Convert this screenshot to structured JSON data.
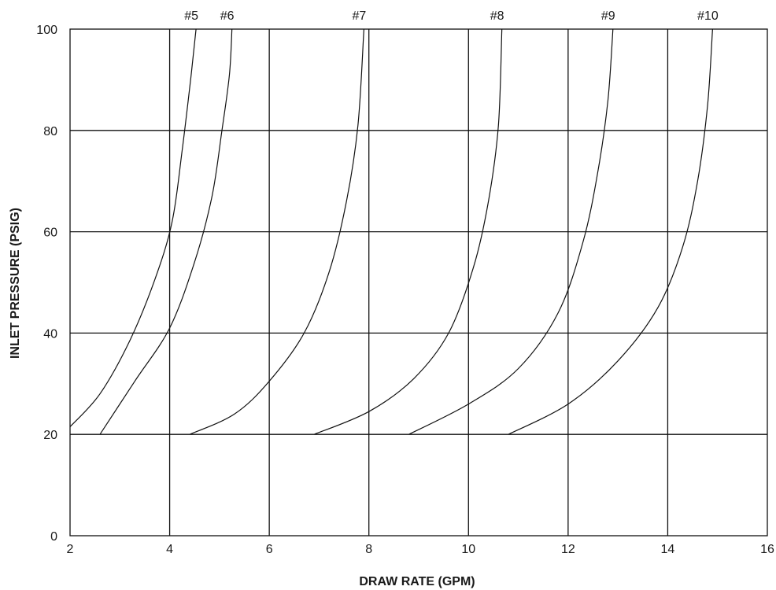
{
  "chart_data": {
    "type": "line",
    "title": "",
    "xlabel": "DRAW RATE (GPM)",
    "ylabel": "INLET PRESSURE (PSIG)",
    "xlim": [
      2,
      16
    ],
    "ylim": [
      0,
      100
    ],
    "xticks": [
      2,
      4,
      6,
      8,
      10,
      12,
      14,
      16
    ],
    "yticks": [
      0,
      20,
      40,
      60,
      80,
      100
    ],
    "grid": true,
    "series": [
      {
        "name": "#5",
        "points": [
          [
            2.0,
            21.5
          ],
          [
            2.6,
            28
          ],
          [
            3.2,
            38.5
          ],
          [
            3.7,
            50.5
          ],
          [
            4.05,
            62
          ],
          [
            4.25,
            76
          ],
          [
            4.42,
            90
          ],
          [
            4.53,
            100
          ]
        ]
      },
      {
        "name": "#6",
        "points": [
          [
            2.6,
            20
          ],
          [
            3.3,
            30.5
          ],
          [
            4.0,
            41
          ],
          [
            4.5,
            54
          ],
          [
            4.85,
            67
          ],
          [
            5.05,
            80
          ],
          [
            5.2,
            91
          ],
          [
            5.25,
            100
          ]
        ]
      },
      {
        "name": "#7",
        "points": [
          [
            4.4,
            20
          ],
          [
            5.3,
            24
          ],
          [
            6.0,
            30.5
          ],
          [
            6.7,
            40
          ],
          [
            7.2,
            52
          ],
          [
            7.55,
            66
          ],
          [
            7.78,
            81
          ],
          [
            7.9,
            100
          ]
        ]
      },
      {
        "name": "#8",
        "points": [
          [
            6.9,
            20
          ],
          [
            8.0,
            24.5
          ],
          [
            8.9,
            31
          ],
          [
            9.6,
            40
          ],
          [
            10.1,
            53
          ],
          [
            10.4,
            66
          ],
          [
            10.6,
            81
          ],
          [
            10.67,
            100
          ]
        ]
      },
      {
        "name": "#9",
        "points": [
          [
            8.8,
            20
          ],
          [
            10.0,
            26
          ],
          [
            11.0,
            33
          ],
          [
            11.8,
            44
          ],
          [
            12.3,
            58
          ],
          [
            12.6,
            72
          ],
          [
            12.8,
            86
          ],
          [
            12.9,
            100
          ]
        ]
      },
      {
        "name": "#10",
        "points": [
          [
            10.8,
            20
          ],
          [
            12.0,
            26
          ],
          [
            13.0,
            34.5
          ],
          [
            13.8,
            45
          ],
          [
            14.3,
            57
          ],
          [
            14.6,
            70
          ],
          [
            14.8,
            85
          ],
          [
            14.9,
            100
          ]
        ]
      }
    ]
  }
}
